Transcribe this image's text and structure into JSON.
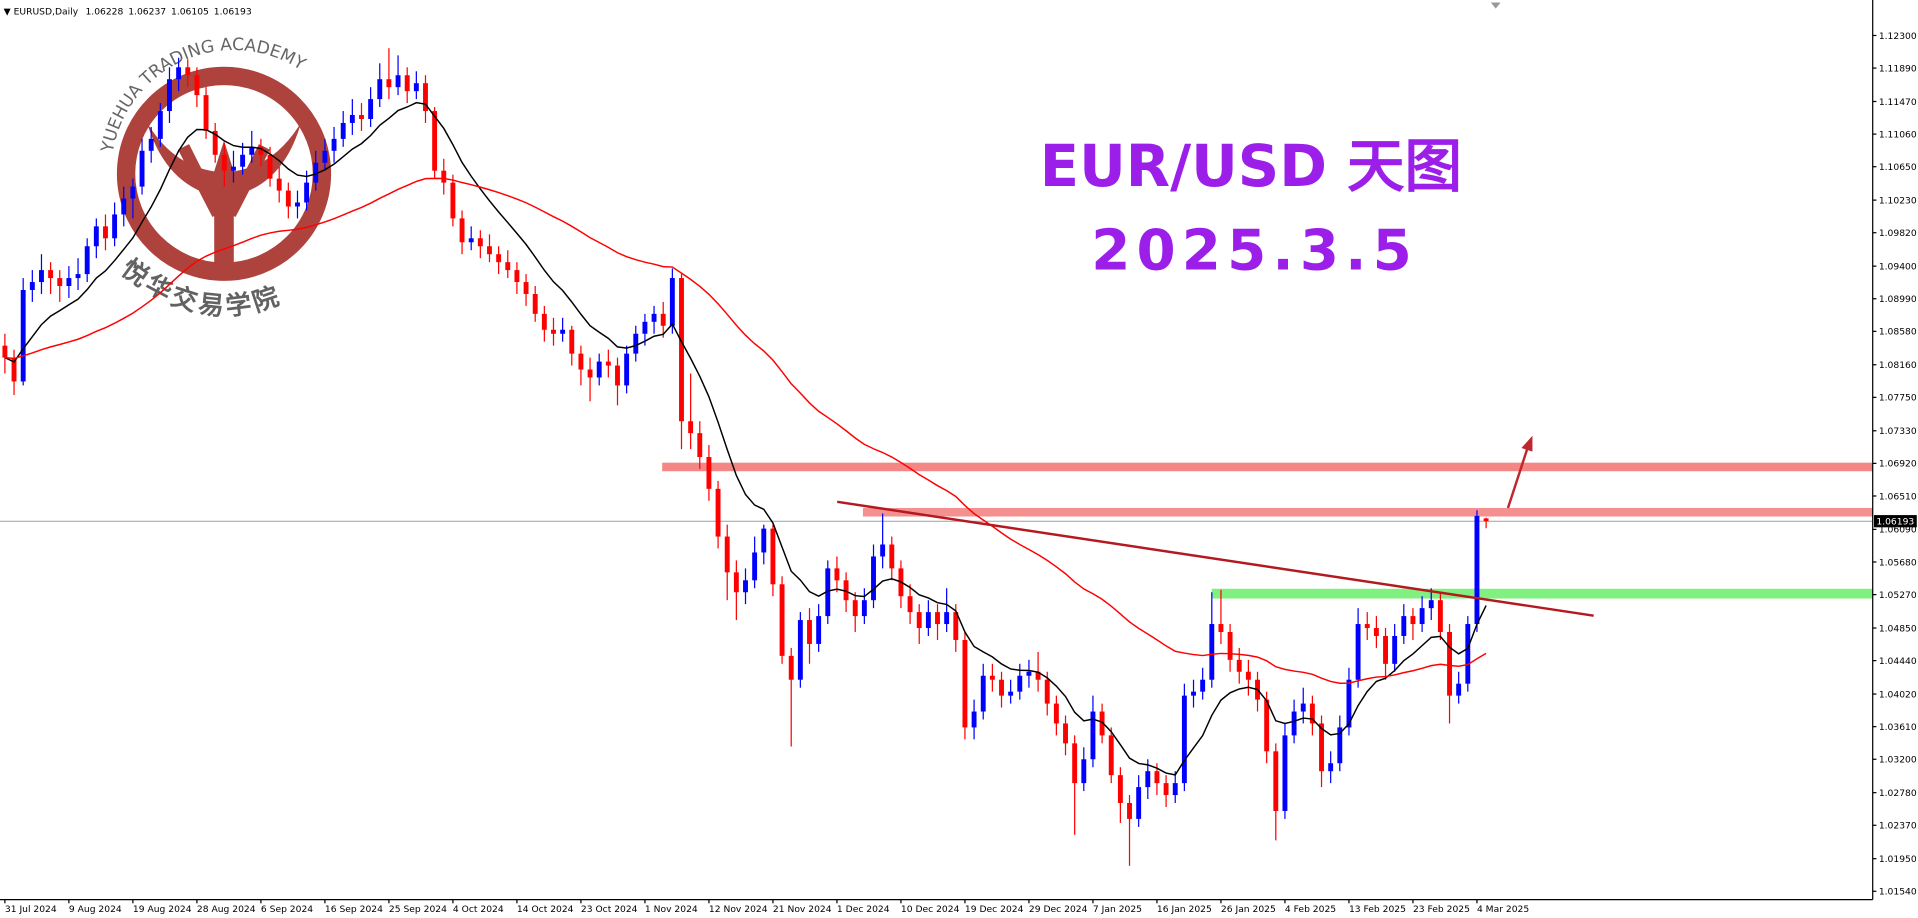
{
  "chart_data": {
    "type": "candlestick",
    "symbol": "EURUSD,Daily",
    "title": "EUR/USD 天图",
    "subtitle": "2025.3.5",
    "logo": {
      "en": "YUEHUA TRADING ACADEMY",
      "cn": "悦华交易学院"
    },
    "up_color": "#0000ff",
    "down_color": "#ff0000",
    "indicators": [
      {
        "type": "ema",
        "period": 10,
        "color": "#000000"
      },
      {
        "type": "ema",
        "period": 50,
        "color": "#ff0000"
      }
    ],
    "ylim": [
      1.01435,
      1.12746
    ],
    "yticks": [
      {
        "value": 1.123,
        "label": "1.12300"
      },
      {
        "value": 1.1189,
        "label": "1.11890"
      },
      {
        "value": 1.1147,
        "label": "1.11470"
      },
      {
        "value": 1.1106,
        "label": "1.11060"
      },
      {
        "value": 1.1065,
        "label": "1.10650"
      },
      {
        "value": 1.1023,
        "label": "1.10230"
      },
      {
        "value": 1.0982,
        "label": "1.09820"
      },
      {
        "value": 1.094,
        "label": "1.09400"
      },
      {
        "value": 1.0899,
        "label": "1.08990"
      },
      {
        "value": 1.0858,
        "label": "1.08580"
      },
      {
        "value": 1.0816,
        "label": "1.08160"
      },
      {
        "value": 1.0775,
        "label": "1.07750"
      },
      {
        "value": 1.0733,
        "label": "1.07330"
      },
      {
        "value": 1.0692,
        "label": "1.06920"
      },
      {
        "value": 1.0651,
        "label": "1.06510"
      },
      {
        "value": 1.0609,
        "label": "1.06090"
      },
      {
        "value": 1.0568,
        "label": "1.05680"
      },
      {
        "value": 1.0527,
        "label": "1.05270"
      },
      {
        "value": 1.0485,
        "label": "1.04850"
      },
      {
        "value": 1.0444,
        "label": "1.04440"
      },
      {
        "value": 1.0402,
        "label": "1.04020"
      },
      {
        "value": 1.0361,
        "label": "1.03610"
      },
      {
        "value": 1.032,
        "label": "1.03200"
      },
      {
        "value": 1.0278,
        "label": "1.02780"
      },
      {
        "value": 1.0237,
        "label": "1.02370"
      },
      {
        "value": 1.0195,
        "label": "1.01950"
      },
      {
        "value": 1.0154,
        "label": "1.01540"
      }
    ],
    "categories": [
      "31 Jul 2024",
      null,
      null,
      null,
      null,
      null,
      null,
      "9 Aug 2024",
      null,
      null,
      null,
      null,
      null,
      null,
      "19 Aug 2024",
      null,
      null,
      null,
      null,
      null,
      null,
      "28 Aug 2024",
      null,
      null,
      null,
      null,
      null,
      null,
      "6 Sep 2024",
      null,
      null,
      null,
      null,
      null,
      null,
      "16 Sep 2024",
      null,
      null,
      null,
      null,
      null,
      null,
      "25 Sep 2024",
      null,
      null,
      null,
      null,
      null,
      null,
      "4 Oct 2024",
      null,
      null,
      null,
      null,
      null,
      null,
      "14 Oct 2024",
      null,
      null,
      null,
      null,
      null,
      null,
      "23 Oct 2024",
      null,
      null,
      null,
      null,
      null,
      null,
      "1 Nov 2024",
      null,
      null,
      null,
      null,
      null,
      null,
      "12 Nov 2024",
      null,
      null,
      null,
      null,
      null,
      null,
      "21 Nov 2024",
      null,
      null,
      null,
      null,
      null,
      null,
      "1 Dec 2024",
      null,
      null,
      null,
      null,
      null,
      null,
      "10 Dec 2024",
      null,
      null,
      null,
      null,
      null,
      null,
      "19 Dec 2024",
      null,
      null,
      null,
      null,
      null,
      null,
      "29 Dec 2024",
      null,
      null,
      null,
      null,
      null,
      null,
      "7 Jan 2025",
      null,
      null,
      null,
      null,
      null,
      null,
      "16 Jan 2025",
      null,
      null,
      null,
      null,
      null,
      null,
      "26 Jan 2025",
      null,
      null,
      null,
      null,
      null,
      null,
      "4 Feb 2025",
      null,
      null,
      null,
      null,
      null,
      null,
      "13 Feb 2025",
      null,
      null,
      null,
      null,
      null,
      null,
      "23 Feb 2025",
      null,
      null,
      null,
      null,
      null,
      null,
      "4 Mar 2025",
      null
    ],
    "ohlc": [
      [
        1.084,
        1.0855,
        1.0805,
        1.0825
      ],
      [
        1.0825,
        1.0835,
        1.0778,
        1.0795
      ],
      [
        1.0795,
        1.0925,
        1.079,
        1.091
      ],
      [
        1.091,
        1.0935,
        1.0895,
        1.092
      ],
      [
        1.092,
        1.0955,
        1.0905,
        1.0935
      ],
      [
        1.0935,
        1.0945,
        1.0905,
        1.0925
      ],
      [
        1.0925,
        1.0935,
        1.0895,
        1.0915
      ],
      [
        1.0915,
        1.094,
        1.09,
        1.0925
      ],
      [
        1.0925,
        1.095,
        1.091,
        1.093
      ],
      [
        1.093,
        1.0975,
        1.092,
        1.0965
      ],
      [
        1.0965,
        1.1,
        1.095,
        1.099
      ],
      [
        1.099,
        1.1005,
        1.096,
        1.0975
      ],
      [
        1.0975,
        1.102,
        1.0965,
        1.1005
      ],
      [
        1.1005,
        1.104,
        1.099,
        1.1025
      ],
      [
        1.1025,
        1.105,
        1.1,
        1.104
      ],
      [
        1.104,
        1.11,
        1.103,
        1.1085
      ],
      [
        1.1085,
        1.1115,
        1.107,
        1.11
      ],
      [
        1.11,
        1.1145,
        1.109,
        1.1135
      ],
      [
        1.1135,
        1.119,
        1.112,
        1.1175
      ],
      [
        1.1175,
        1.1202,
        1.116,
        1.119
      ],
      [
        1.119,
        1.12,
        1.1165,
        1.118
      ],
      [
        1.118,
        1.119,
        1.114,
        1.1155
      ],
      [
        1.1155,
        1.1165,
        1.11,
        1.111
      ],
      [
        1.111,
        1.112,
        1.107,
        1.108
      ],
      [
        1.108,
        1.1095,
        1.104,
        1.106
      ],
      [
        1.106,
        1.1085,
        1.1045,
        1.1065
      ],
      [
        1.1065,
        1.1095,
        1.1055,
        1.108
      ],
      [
        1.108,
        1.111,
        1.107,
        1.109
      ],
      [
        1.109,
        1.11,
        1.1065,
        1.108
      ],
      [
        1.108,
        1.109,
        1.104,
        1.105
      ],
      [
        1.105,
        1.1065,
        1.102,
        1.1035
      ],
      [
        1.1035,
        1.1045,
        1.1,
        1.1015
      ],
      [
        1.1015,
        1.1035,
        1.1,
        1.102
      ],
      [
        1.102,
        1.106,
        1.101,
        1.1045
      ],
      [
        1.1045,
        1.1085,
        1.1035,
        1.107
      ],
      [
        1.107,
        1.11,
        1.106,
        1.1085
      ],
      [
        1.1085,
        1.1115,
        1.107,
        1.11
      ],
      [
        1.11,
        1.1135,
        1.109,
        1.112
      ],
      [
        1.112,
        1.115,
        1.1105,
        1.113
      ],
      [
        1.113,
        1.1145,
        1.111,
        1.1125
      ],
      [
        1.1125,
        1.1165,
        1.1115,
        1.115
      ],
      [
        1.115,
        1.1195,
        1.114,
        1.1175
      ],
      [
        1.1175,
        1.1214,
        1.115,
        1.1165
      ],
      [
        1.1165,
        1.1205,
        1.1155,
        1.118
      ],
      [
        1.118,
        1.119,
        1.1145,
        1.116
      ],
      [
        1.116,
        1.1185,
        1.115,
        1.117
      ],
      [
        1.117,
        1.118,
        1.112,
        1.1135
      ],
      [
        1.1135,
        1.114,
        1.105,
        1.106
      ],
      [
        1.106,
        1.1075,
        1.103,
        1.1045
      ],
      [
        1.1045,
        1.1055,
        1.099,
        1.1
      ],
      [
        1.1,
        1.101,
        1.0955,
        1.097
      ],
      [
        1.097,
        1.099,
        1.096,
        1.0975
      ],
      [
        1.0975,
        1.0985,
        1.095,
        1.0965
      ],
      [
        1.0965,
        1.098,
        1.0945,
        1.0955
      ],
      [
        1.0955,
        1.0965,
        1.093,
        1.0945
      ],
      [
        1.0945,
        1.096,
        1.0925,
        1.0935
      ],
      [
        1.0935,
        1.0945,
        1.0905,
        1.092
      ],
      [
        1.092,
        1.093,
        1.089,
        1.0905
      ],
      [
        1.0905,
        1.0915,
        1.087,
        1.088
      ],
      [
        1.088,
        1.089,
        1.0845,
        1.086
      ],
      [
        1.086,
        1.0875,
        1.084,
        1.0855
      ],
      [
        1.0855,
        1.0875,
        1.0845,
        1.086
      ],
      [
        1.086,
        1.0865,
        1.0815,
        1.083
      ],
      [
        1.083,
        1.084,
        1.079,
        1.081
      ],
      [
        1.081,
        1.0825,
        1.077,
        1.08
      ],
      [
        1.08,
        1.083,
        1.079,
        1.082
      ],
      [
        1.082,
        1.0835,
        1.08,
        1.0815
      ],
      [
        1.0815,
        1.0825,
        1.0765,
        1.079
      ],
      [
        1.079,
        1.084,
        1.078,
        1.083
      ],
      [
        1.083,
        1.0865,
        1.082,
        1.0855
      ],
      [
        1.0855,
        1.088,
        1.084,
        1.087
      ],
      [
        1.087,
        1.089,
        1.0855,
        1.088
      ],
      [
        1.088,
        1.0895,
        1.085,
        1.0865
      ],
      [
        1.0865,
        1.0937,
        1.0855,
        1.0925
      ],
      [
        1.0925,
        1.093,
        1.071,
        1.0745
      ],
      [
        1.0745,
        1.0805,
        1.071,
        1.073
      ],
      [
        1.073,
        1.0745,
        1.0685,
        1.07
      ],
      [
        1.07,
        1.0715,
        1.0645,
        1.066
      ],
      [
        1.066,
        1.067,
        1.0585,
        1.06
      ],
      [
        1.06,
        1.0615,
        1.052,
        1.0555
      ],
      [
        1.0555,
        1.057,
        1.0495,
        1.053
      ],
      [
        1.053,
        1.056,
        1.0515,
        1.0545
      ],
      [
        1.0545,
        1.06,
        1.0535,
        1.058
      ],
      [
        1.058,
        1.0615,
        1.0565,
        1.061
      ],
      [
        1.061,
        1.0615,
        1.0525,
        1.054
      ],
      [
        1.054,
        1.055,
        1.044,
        1.045
      ],
      [
        1.045,
        1.046,
        1.0336,
        1.042
      ],
      [
        1.042,
        1.0505,
        1.041,
        1.0495
      ],
      [
        1.0495,
        1.051,
        1.044,
        1.0465
      ],
      [
        1.0465,
        1.0515,
        1.0455,
        1.05
      ],
      [
        1.05,
        1.057,
        1.049,
        1.056
      ],
      [
        1.056,
        1.0575,
        1.053,
        1.0545
      ],
      [
        1.0545,
        1.0555,
        1.0505,
        1.052
      ],
      [
        1.052,
        1.053,
        1.048,
        1.05
      ],
      [
        1.05,
        1.0535,
        1.049,
        1.052
      ],
      [
        1.052,
        1.059,
        1.051,
        1.0575
      ],
      [
        1.0575,
        1.0629,
        1.056,
        1.059
      ],
      [
        1.059,
        1.06,
        1.0545,
        1.056
      ],
      [
        1.056,
        1.057,
        1.051,
        1.0525
      ],
      [
        1.0525,
        1.054,
        1.049,
        1.0505
      ],
      [
        1.0505,
        1.0515,
        1.0465,
        1.0485
      ],
      [
        1.0485,
        1.052,
        1.0475,
        1.0505
      ],
      [
        1.0505,
        1.0515,
        1.047,
        1.049
      ],
      [
        1.049,
        1.0535,
        1.048,
        1.0505
      ],
      [
        1.0505,
        1.0515,
        1.0455,
        1.047
      ],
      [
        1.047,
        1.048,
        1.0345,
        1.036
      ],
      [
        1.036,
        1.0395,
        1.0345,
        1.038
      ],
      [
        1.038,
        1.044,
        1.037,
        1.0425
      ],
      [
        1.0425,
        1.044,
        1.0405,
        1.042
      ],
      [
        1.042,
        1.043,
        1.0385,
        1.04
      ],
      [
        1.04,
        1.042,
        1.039,
        1.0405
      ],
      [
        1.0405,
        1.044,
        1.0395,
        1.0425
      ],
      [
        1.0425,
        1.0445,
        1.041,
        1.043
      ],
      [
        1.043,
        1.0455,
        1.0405,
        1.042
      ],
      [
        1.042,
        1.043,
        1.0375,
        1.039
      ],
      [
        1.039,
        1.04,
        1.035,
        1.0365
      ],
      [
        1.0365,
        1.0375,
        1.0325,
        1.034
      ],
      [
        1.034,
        1.035,
        1.0225,
        1.029
      ],
      [
        1.029,
        1.0335,
        1.028,
        1.032
      ],
      [
        1.032,
        1.04,
        1.031,
        1.038
      ],
      [
        1.038,
        1.039,
        1.034,
        1.035
      ],
      [
        1.035,
        1.036,
        1.029,
        1.03
      ],
      [
        1.03,
        1.031,
        1.024,
        1.0265
      ],
      [
        1.0265,
        1.0275,
        1.0186,
        1.0245
      ],
      [
        1.0245,
        1.03,
        1.0235,
        1.0285
      ],
      [
        1.0285,
        1.032,
        1.027,
        1.0305
      ],
      [
        1.0305,
        1.0315,
        1.0275,
        1.029
      ],
      [
        1.029,
        1.03,
        1.026,
        1.0275
      ],
      [
        1.0275,
        1.0305,
        1.0265,
        1.029
      ],
      [
        1.029,
        1.0415,
        1.028,
        1.04
      ],
      [
        1.04,
        1.042,
        1.0385,
        1.0405
      ],
      [
        1.0405,
        1.0435,
        1.0395,
        1.042
      ],
      [
        1.042,
        1.053,
        1.041,
        1.049
      ],
      [
        1.049,
        1.0533,
        1.0465,
        1.048
      ],
      [
        1.048,
        1.049,
        1.043,
        1.0445
      ],
      [
        1.0445,
        1.046,
        1.0415,
        1.043
      ],
      [
        1.043,
        1.0445,
        1.04,
        1.042
      ],
      [
        1.042,
        1.043,
        1.038,
        1.0395
      ],
      [
        1.0395,
        1.0405,
        1.0315,
        1.033
      ],
      [
        1.033,
        1.034,
        1.0218,
        1.0255
      ],
      [
        1.0255,
        1.0365,
        1.0245,
        1.035
      ],
      [
        1.035,
        1.0395,
        1.034,
        1.038
      ],
      [
        1.038,
        1.041,
        1.0365,
        1.039
      ],
      [
        1.039,
        1.04,
        1.035,
        1.0365
      ],
      [
        1.0365,
        1.0375,
        1.0285,
        1.0305
      ],
      [
        1.0305,
        1.033,
        1.029,
        1.0315
      ],
      [
        1.0315,
        1.0375,
        1.0305,
        1.036
      ],
      [
        1.036,
        1.0435,
        1.035,
        1.042
      ],
      [
        1.042,
        1.051,
        1.041,
        1.049
      ],
      [
        1.049,
        1.0505,
        1.047,
        1.0485
      ],
      [
        1.0485,
        1.05,
        1.046,
        1.0475
      ],
      [
        1.0475,
        1.0485,
        1.042,
        1.044
      ],
      [
        1.044,
        1.049,
        1.043,
        1.0475
      ],
      [
        1.0475,
        1.0515,
        1.0465,
        1.05
      ],
      [
        1.05,
        1.051,
        1.047,
        1.049
      ],
      [
        1.049,
        1.0525,
        1.048,
        1.051
      ],
      [
        1.051,
        1.0535,
        1.0495,
        1.052
      ],
      [
        1.052,
        1.053,
        1.047,
        1.048
      ],
      [
        1.048,
        1.049,
        1.0365,
        1.04
      ],
      [
        1.04,
        1.043,
        1.039,
        1.0415
      ],
      [
        1.0415,
        1.05,
        1.0405,
        1.049
      ],
      [
        1.049,
        1.0633,
        1.048,
        1.0626
      ],
      [
        1.06228,
        1.06237,
        1.06105,
        1.06193
      ]
    ]
  }
}
